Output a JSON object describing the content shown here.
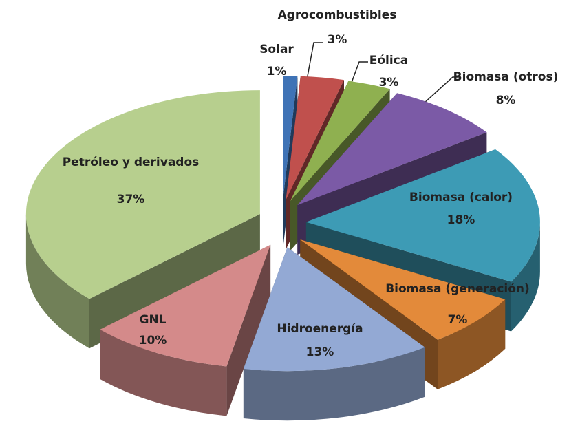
{
  "chart_data": {
    "type": "pie3d",
    "categories": [
      "Solar",
      "Agrocombustibles",
      "Eólica",
      "Biomasa (otros)",
      "Biomasa (calor)",
      "Biomasa (generación)",
      "Hidroenergía",
      "GNL",
      "Petróleo y derivados"
    ],
    "values": [
      1,
      3,
      3,
      8,
      18,
      7,
      13,
      10,
      37
    ],
    "value_labels": [
      "1%",
      "3%",
      "3%",
      "8%",
      "18%",
      "7%",
      "13%",
      "10%",
      "37%"
    ],
    "colors": [
      "#3f73b6",
      "#c0504d",
      "#8fb050",
      "#7b5aa6",
      "#3d9bb5",
      "#e38a3a",
      "#93a9d4",
      "#d48a8a",
      "#b7cf8e"
    ]
  }
}
